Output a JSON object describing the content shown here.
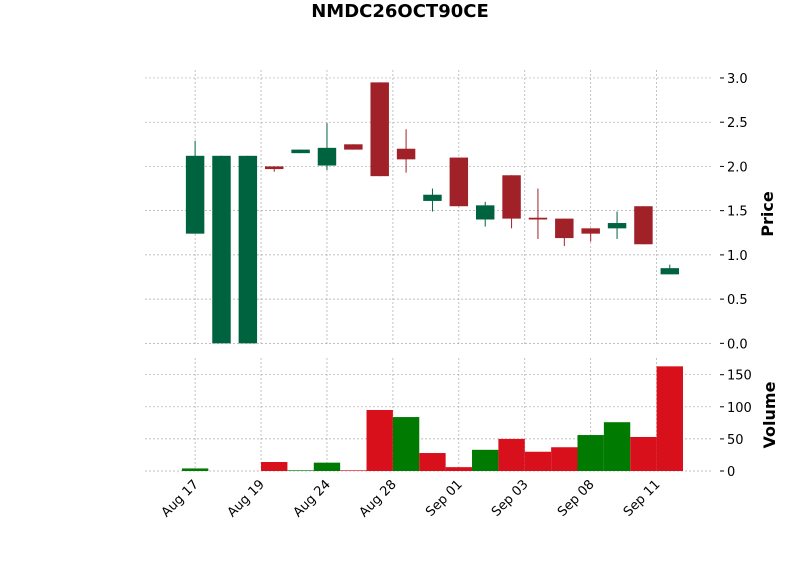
{
  "chart_data": {
    "type": "candlestick",
    "title": "NMDC26OCT90CE",
    "x": [
      0,
      1,
      2,
      3,
      4,
      5,
      6,
      7,
      8,
      9,
      10,
      11,
      12,
      13,
      14,
      15,
      16,
      17,
      18
    ],
    "open": [
      1.24,
      0,
      0,
      2.0,
      2.15,
      2.01,
      2.25,
      2.95,
      2.2,
      1.61,
      2.1,
      1.4,
      1.9,
      1.42,
      1.41,
      1.3,
      1.3,
      1.55,
      0.78
    ],
    "high": [
      2.29,
      2.12,
      2.12,
      2.0,
      2.19,
      2.49,
      2.25,
      2.95,
      2.42,
      1.75,
      2.1,
      1.6,
      1.9,
      1.75,
      1.41,
      1.3,
      1.49,
      1.55,
      0.89
    ],
    "low": [
      1.24,
      0,
      0,
      1.94,
      2.15,
      1.96,
      2.19,
      1.89,
      1.93,
      1.49,
      1.55,
      1.32,
      1.3,
      1.18,
      1.1,
      1.15,
      1.18,
      1.12,
      0.78
    ],
    "close": [
      2.12,
      2.12,
      2.12,
      1.97,
      2.19,
      2.21,
      2.19,
      1.89,
      2.08,
      1.68,
      1.55,
      1.56,
      1.41,
      1.4,
      1.19,
      1.24,
      1.36,
      1.12,
      0.85
    ],
    "volume": [
      4,
      0,
      0,
      14,
      1,
      13,
      1,
      95,
      84,
      28,
      6,
      33,
      50,
      30,
      37,
      56,
      76,
      53,
      163
    ],
    "up_color": "#006340",
    "down_color": "#a02128",
    "volume_up_color": "#007a00",
    "volume_down_color": "#d7101c",
    "xlim": [
      -1.9,
      19.6
    ],
    "xticks": [
      {
        "value": 0,
        "label": "Aug 17"
      },
      {
        "value": 2.5,
        "label": "Aug 19"
      },
      {
        "value": 5,
        "label": "Aug 24"
      },
      {
        "value": 7.5,
        "label": "Aug 28"
      },
      {
        "value": 10,
        "label": "Sep 01"
      },
      {
        "value": 12.5,
        "label": "Sep 03"
      },
      {
        "value": 15,
        "label": "Sep 08"
      },
      {
        "value": 17.5,
        "label": "Sep 11"
      }
    ],
    "ylabel": "Price",
    "ylim": [
      -0.03,
      3.09
    ],
    "yticks": [
      {
        "value": 0,
        "label": "0.0"
      },
      {
        "value": 0.5,
        "label": "0.5"
      },
      {
        "value": 1,
        "label": "1.0"
      },
      {
        "value": 1.5,
        "label": "1.5"
      },
      {
        "value": 2,
        "label": "2.0"
      },
      {
        "value": 2.5,
        "label": "2.5"
      },
      {
        "value": 3,
        "label": "3.0"
      }
    ],
    "volume_label": "Volume",
    "volume_lim": [
      0,
      176
    ],
    "volume_ticks": [
      0,
      50,
      100,
      150
    ],
    "grid": true
  }
}
